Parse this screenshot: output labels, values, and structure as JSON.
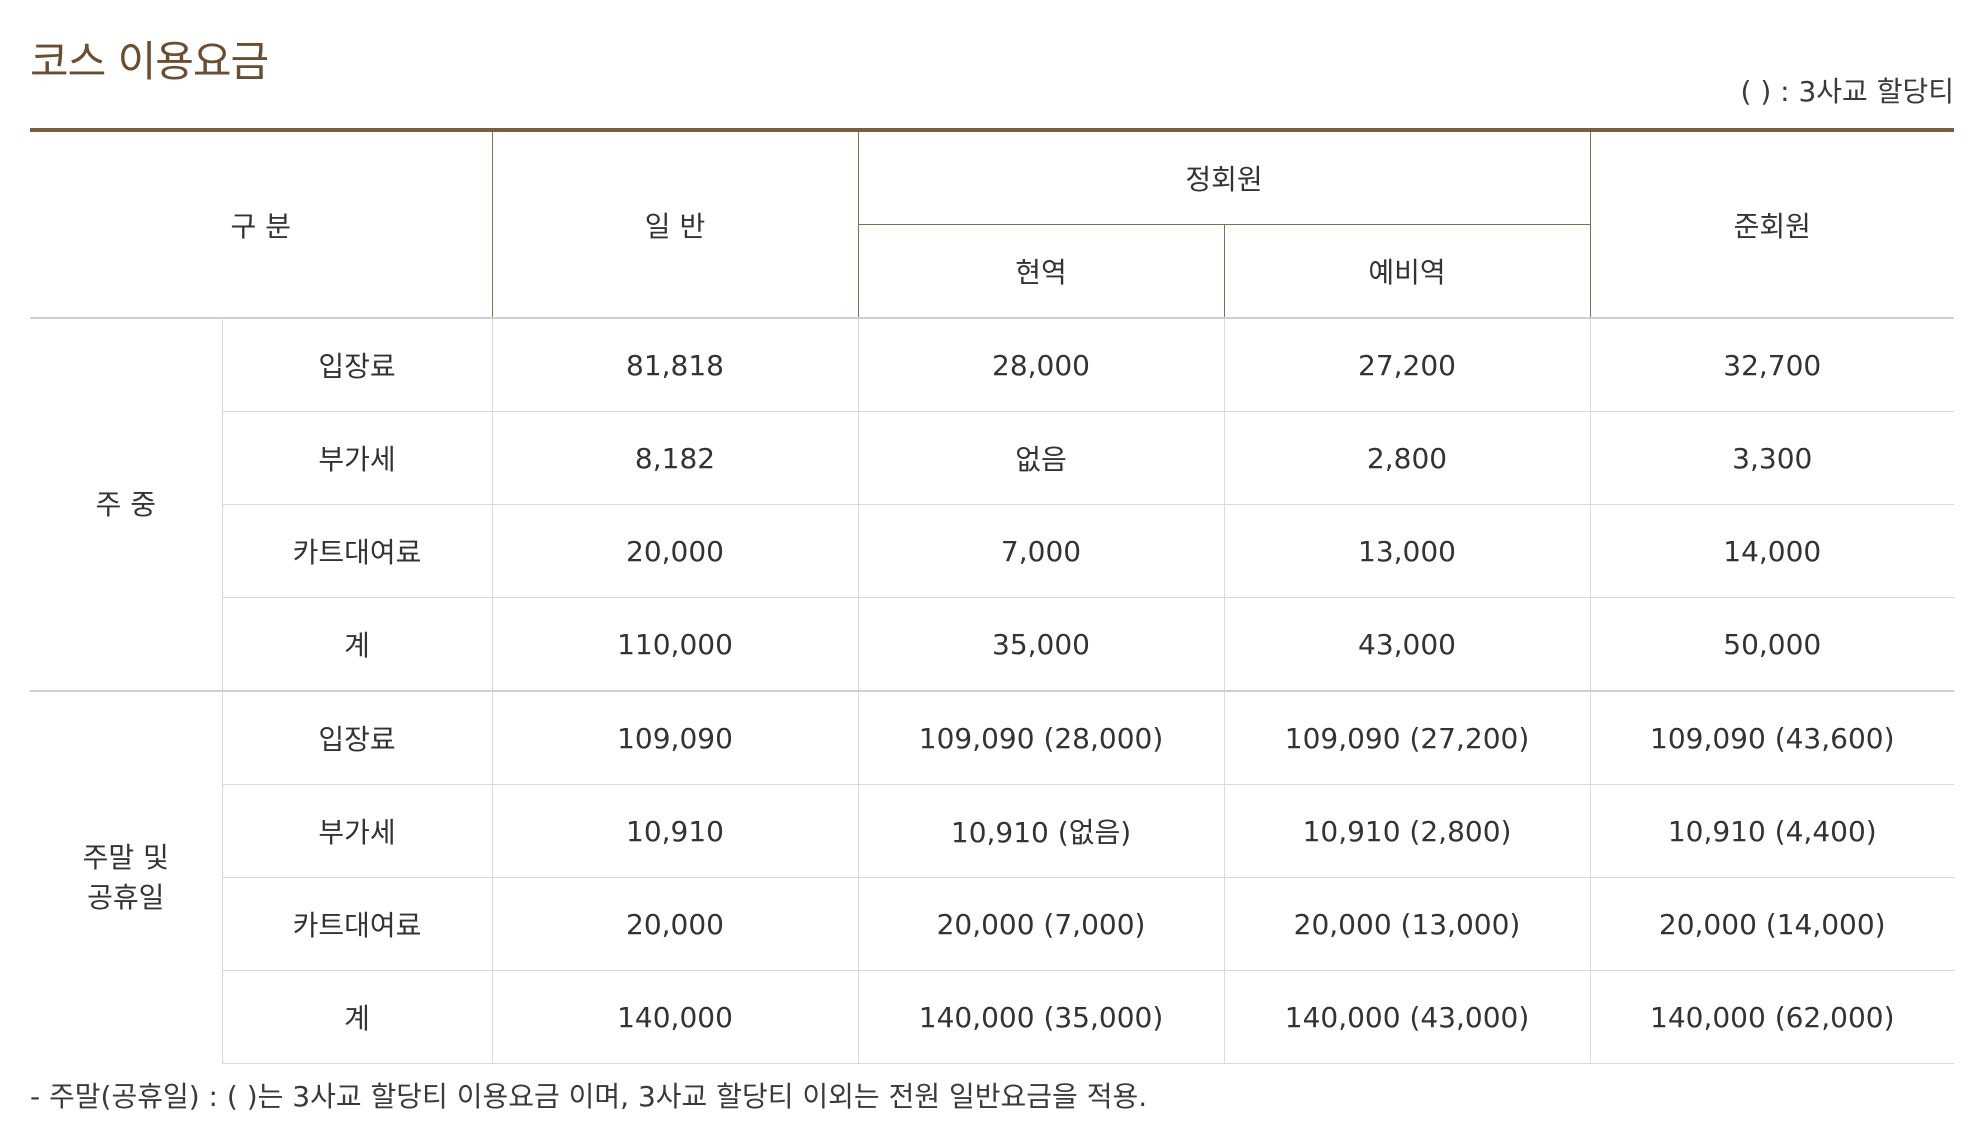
{
  "title": "코스 이용요금",
  "legend_note": "(   ) : 3사교 할당티",
  "header": {
    "division": "구 분",
    "general": "일 반",
    "regular_member": "정회원",
    "active": "현역",
    "reserve": "예비역",
    "associate_member": "준회원"
  },
  "groups": [
    {
      "name_line1": "주 중",
      "name_line2": "",
      "rows": [
        {
          "item": "입장료",
          "general": "81,818",
          "active": "28,000",
          "reserve": "27,200",
          "associate": "32,700"
        },
        {
          "item": "부가세",
          "general": "8,182",
          "active": "없음",
          "reserve": "2,800",
          "associate": "3,300"
        },
        {
          "item": "카트대여료",
          "general": "20,000",
          "active": "7,000",
          "reserve": "13,000",
          "associate": "14,000"
        },
        {
          "item": "계",
          "general": "110,000",
          "active": "35,000",
          "reserve": "43,000",
          "associate": "50,000"
        }
      ]
    },
    {
      "name_line1": "주말 및",
      "name_line2": "공휴일",
      "rows": [
        {
          "item": "입장료",
          "general": "109,090",
          "active": "109,090 (28,000)",
          "reserve": "109,090 (27,200)",
          "associate": "109,090 (43,600)"
        },
        {
          "item": "부가세",
          "general": "10,910",
          "active": "10,910 (없음)",
          "reserve": "10,910 (2,800)",
          "associate": "10,910 (4,400)"
        },
        {
          "item": "카트대여료",
          "general": "20,000",
          "active": "20,000 (7,000)",
          "reserve": "20,000 (13,000)",
          "associate": "20,000 (14,000)"
        },
        {
          "item": "계",
          "general": "140,000",
          "active": "140,000 (35,000)",
          "reserve": "140,000 (43,000)",
          "associate": "140,000 (62,000)"
        }
      ]
    }
  ],
  "footnote": "- 주말(공휴일) : (   )는 3사교 할당티 이용요금 이며, 3사교 할당티 이외는 전원 일반요금을 적용.",
  "colors": {
    "accent": "#7a5c3e",
    "title": "#6a4e31",
    "rule": "#d9d9d9"
  }
}
